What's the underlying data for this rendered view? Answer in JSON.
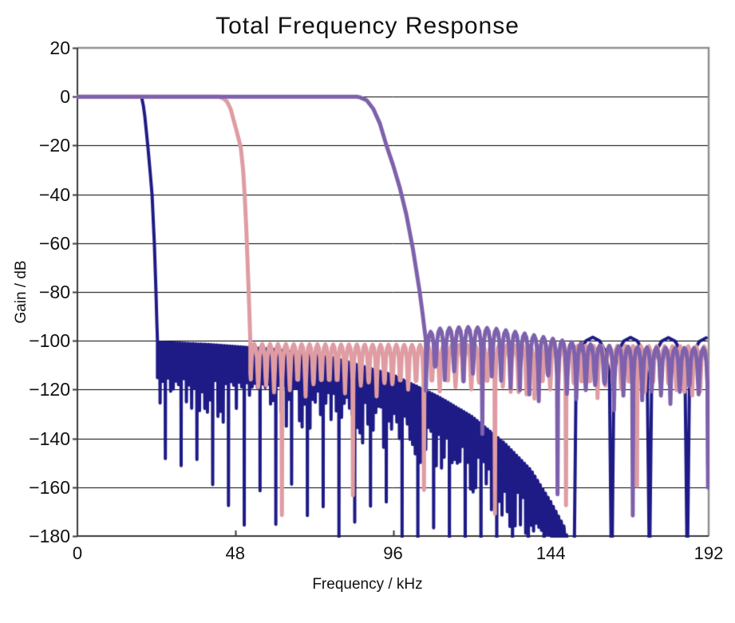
{
  "title": "Total Frequency Response",
  "axes": {
    "x": {
      "label": "Frequency / kHz",
      "tick_labels": [
        "0",
        "48",
        "96",
        "144",
        "192"
      ],
      "tick_values": [
        0,
        48,
        96,
        144,
        192
      ]
    },
    "y": {
      "label": "Gain / dB",
      "tick_labels": [
        "20",
        "0",
        "−20",
        "−40",
        "−60",
        "−80",
        "−100",
        "−120",
        "−140",
        "−160",
        "−180"
      ],
      "tick_values": [
        20,
        0,
        -20,
        -40,
        -60,
        -80,
        -100,
        -120,
        -140,
        -160,
        -180
      ]
    }
  },
  "style": {
    "gridline_color": "#000000",
    "border_top_right_color": "#8f8f8f",
    "axis_color": "#3a3a3a",
    "background": "#ffffff",
    "legend": "none",
    "grid": "horizontal-only"
  },
  "chart_data": {
    "type": "line",
    "title": "Total Frequency Response",
    "xlabel": "Frequency / kHz",
    "ylabel": "Gain / dB",
    "xlim": [
      0,
      192
    ],
    "ylim": [
      -180,
      20
    ],
    "xticks": [
      0,
      48,
      96,
      144,
      192
    ],
    "yticks": [
      20,
      0,
      -20,
      -40,
      -60,
      -80,
      -100,
      -120,
      -140,
      -160,
      -180
    ],
    "grid": "horizontal-only",
    "legend_position": "none",
    "series": [
      {
        "id": "navy-steep-filter",
        "color": "#1e1b87",
        "line_width": 4,
        "passband_db": 0,
        "passband": [
          0,
          19.5
        ],
        "transition_points": [
          [
            19.5,
            0
          ],
          [
            20.1,
            -4
          ],
          [
            20.5,
            -8
          ],
          [
            21.4,
            -20
          ],
          [
            22.2,
            -32
          ],
          [
            22.7,
            -40
          ],
          [
            23.4,
            -60
          ],
          [
            23.9,
            -80
          ],
          [
            24.15,
            -92
          ],
          [
            24.35,
            -100
          ]
        ],
        "stopbands": [
          {
            "start": 24.35,
            "end": 151,
            "ripple_period_khz": 0.8,
            "seed": 11,
            "envelope_top_db": [
              [
                24.35,
                -100.5
              ],
              [
                40,
                -101.5
              ],
              [
                60,
                -103.5
              ],
              [
                78,
                -107
              ],
              [
                96,
                -114
              ],
              [
                110,
                -123
              ],
              [
                120,
                -131
              ],
              [
                130,
                -142
              ],
              [
                138,
                -153
              ],
              [
                144,
                -166
              ],
              [
                148,
                -176
              ],
              [
                151,
                -190
              ]
            ],
            "valley_min_db": 10,
            "valley_var_db": 22,
            "deep_every": 6,
            "deep_offset": 3,
            "deep_min_db": 45,
            "deep_var_db": 30
          },
          {
            "start": 151,
            "end": 192,
            "ripple_period_khz": 11.5,
            "seed": 29,
            "envelope_top_db": [
              [
                151,
                -98.5
              ],
              [
                192,
                -98.8
              ]
            ],
            "valley_min_db": 75,
            "valley_var_db": 40,
            "deep_every": 99,
            "deep_offset": 98,
            "deep_min_db": 90,
            "deep_var_db": 20
          }
        ]
      },
      {
        "id": "pink-mid-filter",
        "color": "#df9ca2",
        "line_width": 5,
        "passband_db": 0,
        "passband": [
          0,
          43.0
        ],
        "transition_points": [
          [
            43,
            0
          ],
          [
            44.5,
            -0.8
          ],
          [
            45.5,
            -2
          ],
          [
            46.6,
            -5
          ],
          [
            47.8,
            -11
          ],
          [
            48.8,
            -16
          ],
          [
            49.7,
            -21
          ],
          [
            50.4,
            -30
          ],
          [
            50.9,
            -41
          ],
          [
            51.4,
            -55
          ],
          [
            51.9,
            -73
          ],
          [
            52.3,
            -88
          ],
          [
            52.6,
            -101
          ]
        ],
        "stopbands": [
          {
            "start": 52.6,
            "end": 192,
            "ripple_period_khz": 2.4,
            "seed": 53,
            "envelope_top_db": [
              [
                52.6,
                -101.3
              ],
              [
                120,
                -101.8
              ],
              [
                192,
                -102.3
              ]
            ],
            "valley_min_db": 12,
            "valley_var_db": 10,
            "deep_every": 9,
            "deep_offset": 4,
            "deep_min_db": 38,
            "deep_var_db": 35
          }
        ]
      },
      {
        "id": "purple-slow-rolloff-filter",
        "color": "#7d61ac",
        "line_width": 5,
        "passband_db": 0,
        "passband": [
          0,
          85.0
        ],
        "transition_points": [
          [
            85,
            0
          ],
          [
            86,
            -0.3
          ],
          [
            88,
            -1.5
          ],
          [
            90,
            -5
          ],
          [
            92,
            -11
          ],
          [
            94,
            -20
          ],
          [
            96,
            -28
          ],
          [
            98,
            -37
          ],
          [
            100,
            -48
          ],
          [
            102,
            -62
          ],
          [
            104,
            -79
          ],
          [
            105,
            -89
          ],
          [
            106,
            -100
          ]
        ],
        "stopbands": [
          {
            "start": 106,
            "end": 192,
            "ripple_period_khz": 2.86,
            "seed": 77,
            "envelope_top_db": [
              [
                106,
                -97
              ],
              [
                110,
                -95
              ],
              [
                118,
                -94.3
              ],
              [
                126,
                -94.8
              ],
              [
                134,
                -96.5
              ],
              [
                142,
                -98.5
              ],
              [
                150,
                -100.5
              ],
              [
                160,
                -102
              ],
              [
                175,
                -102.8
              ],
              [
                192,
                -103
              ]
            ],
            "valley_min_db": 15,
            "valley_var_db": 12,
            "deep_every": 8,
            "deep_offset": 6,
            "deep_min_db": 42,
            "deep_var_db": 35
          }
        ]
      }
    ]
  },
  "layout_note": "no legend shown; three overlaid lowpass responses"
}
